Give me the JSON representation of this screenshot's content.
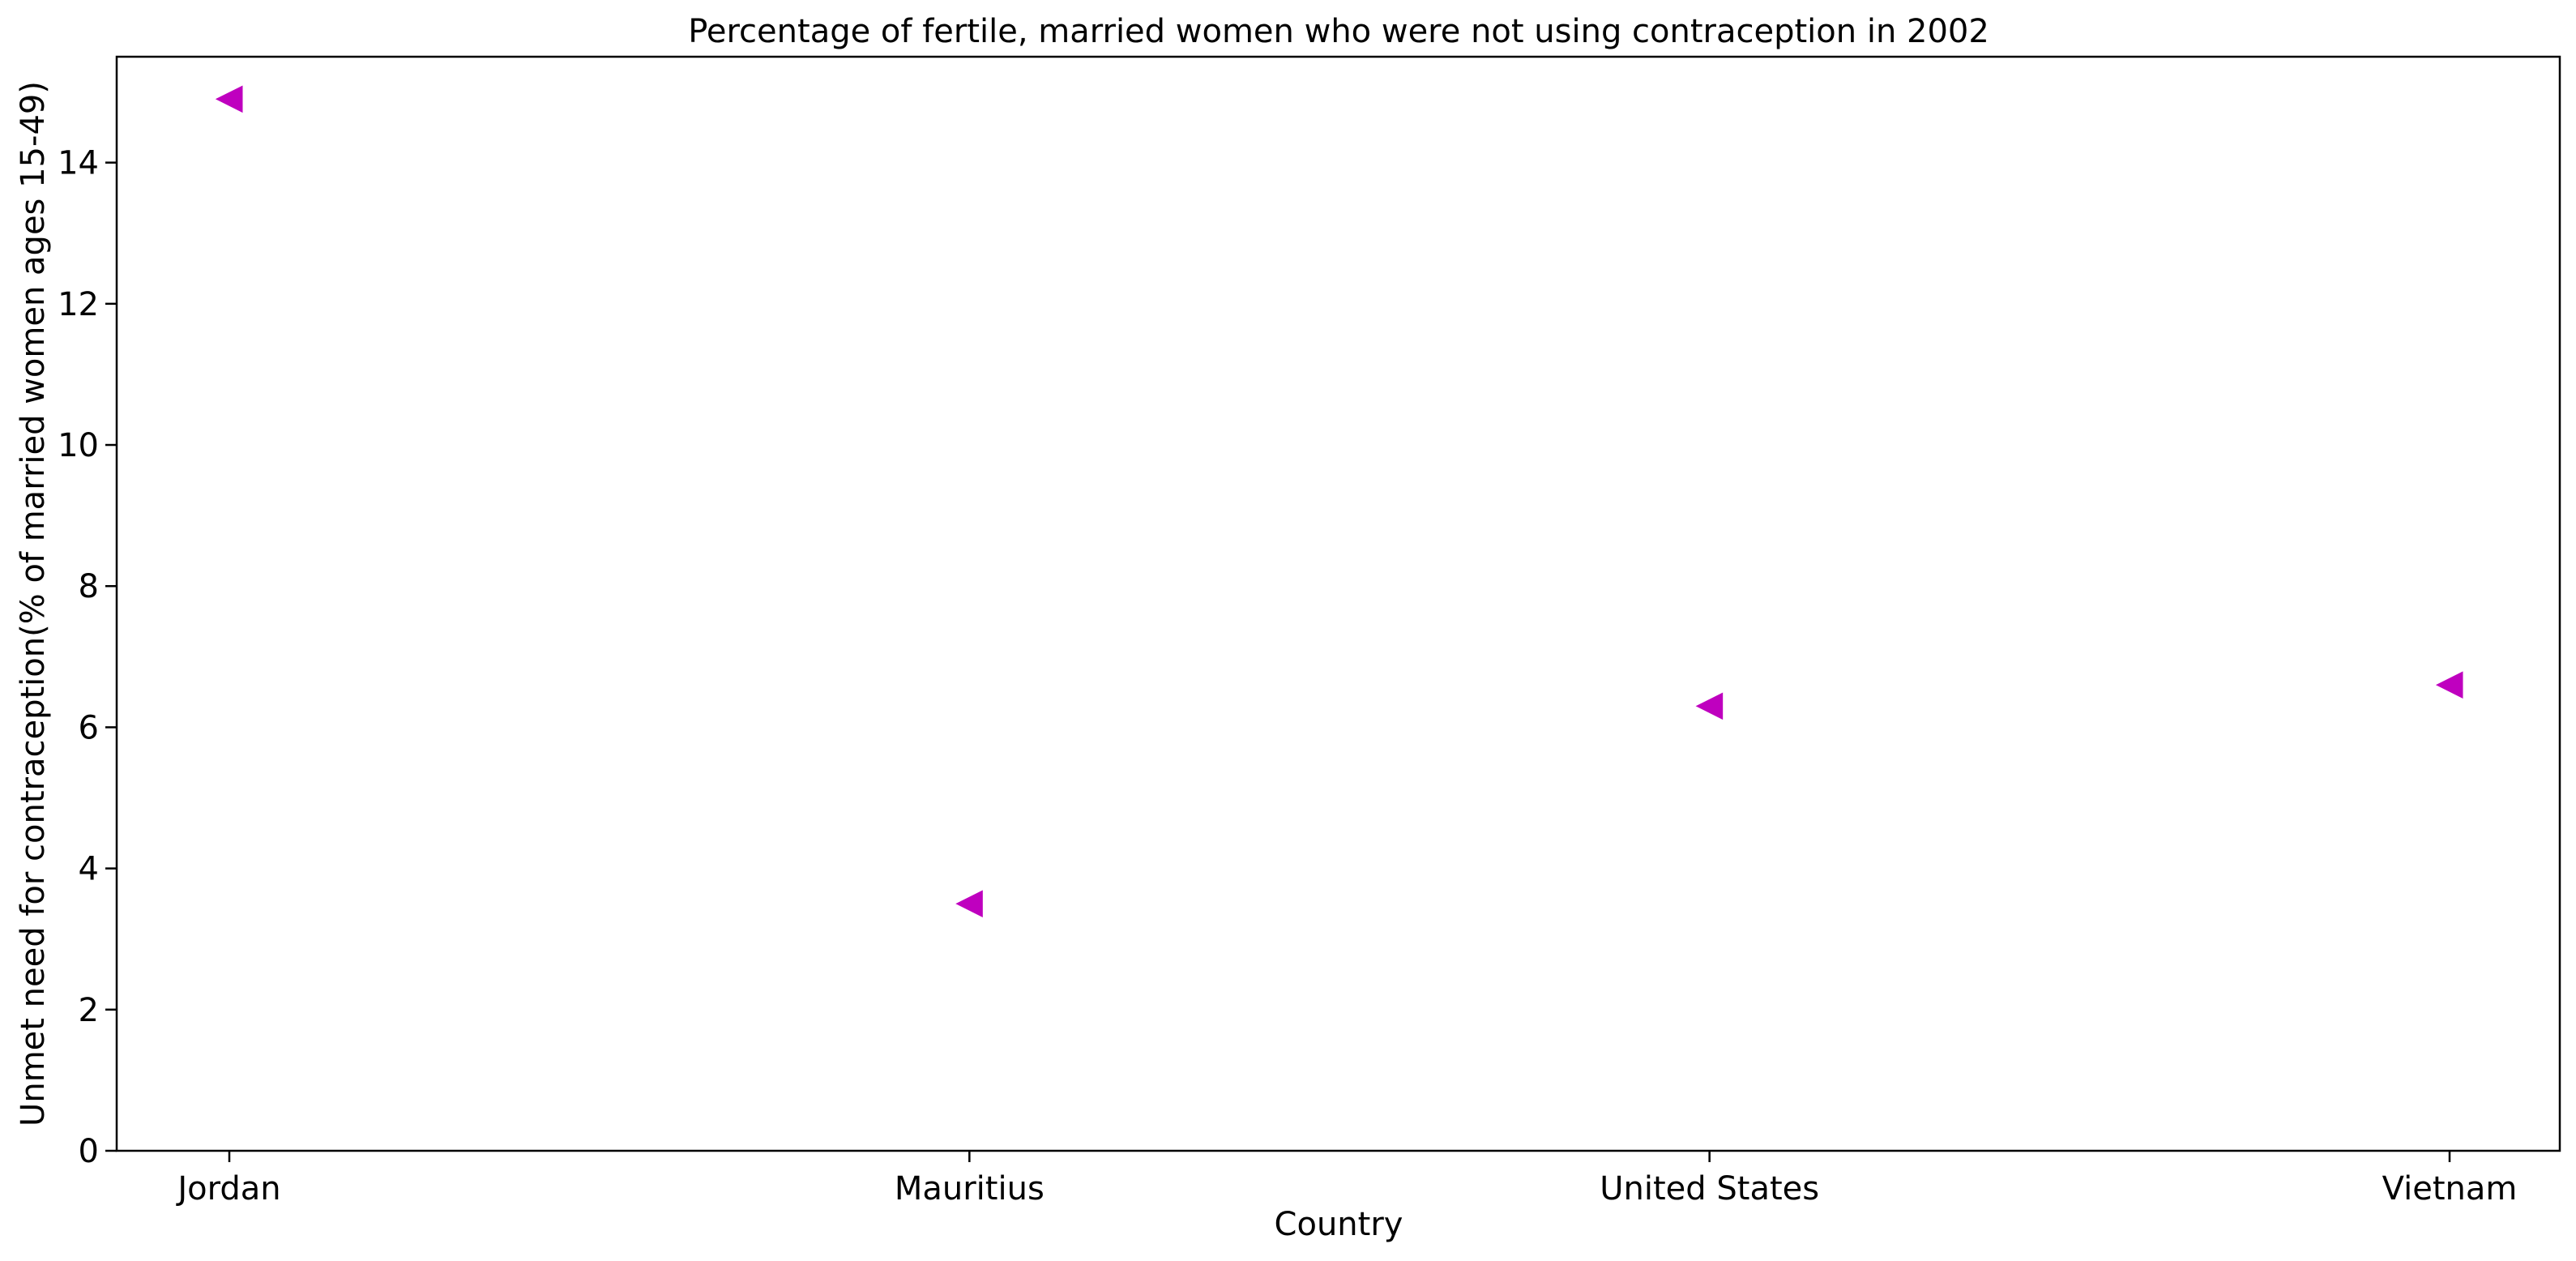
{
  "chart_data": {
    "type": "scatter",
    "title": "Percentage of fertile, married women who were not using contraception in 2002",
    "xlabel": "Country",
    "ylabel": "Unmet need for contraception(% of married women ages 15-49)",
    "categories": [
      "Jordan",
      "Mauritius",
      "United States",
      "Vietnam"
    ],
    "values": [
      14.9,
      3.5,
      6.3,
      6.6
    ],
    "ylim": [
      0,
      15.5
    ],
    "yticks": [
      0,
      2,
      4,
      6,
      8,
      10,
      12,
      14
    ],
    "marker": "triangle-left",
    "marker_color": "#bf00bf",
    "grid": false,
    "legend": false
  }
}
